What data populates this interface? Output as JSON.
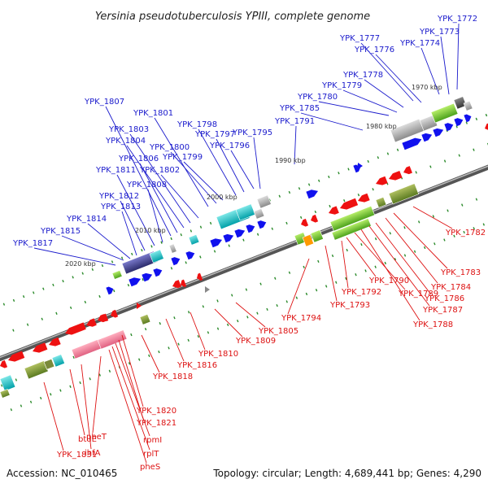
{
  "title": "Yersinia pseudotuberculosis YPIII, complete genome",
  "footer": {
    "accession": "Accession: NC_010465",
    "summary": "Topology: circular; Length: 4,689,441 bp; Genes: 4,290"
  },
  "colors": {
    "forward_label": "#1a1acc",
    "reverse_label": "#dd1111",
    "forward_gene": "#1111ee",
    "reverse_gene": "#ee1111",
    "backbone": "#777777",
    "tick": "#2a8a2a"
  },
  "kbp_ticks": [
    "1970 kbp",
    "1980 kbp",
    "1990 kbp",
    "2000 kbp",
    "2010 kbp",
    "2020 kbp"
  ],
  "forward_labels": [
    "YPK_1772",
    "YPK_1773",
    "YPK_1774",
    "YPK_1777",
    "YPK_1776",
    "YPK_1778",
    "YPK_1779",
    "YPK_1780",
    "YPK_1785",
    "YPK_1791",
    "YPK_1795",
    "YPK_1796",
    "YPK_1797",
    "YPK_1798",
    "YPK_1799",
    "YPK_1800",
    "YPK_1801",
    "YPK_1802",
    "YPK_1803",
    "YPK_1804",
    "YPK_1806",
    "YPK_1807",
    "YPK_1808",
    "YPK_1811",
    "YPK_1812",
    "YPK_1813",
    "YPK_1814",
    "YPK_1815",
    "YPK_1817"
  ],
  "reverse_labels": [
    "YPK_1782",
    "YPK_1783",
    "YPK_1784",
    "YPK_1786",
    "YPK_1787",
    "YPK_1788",
    "YPK_1789",
    "YPK_1790",
    "YPK_1792",
    "YPK_1793",
    "YPK_1794",
    "YPK_1805",
    "YPK_1809",
    "YPK_1810",
    "YPK_1816",
    "YPK_1818",
    "YPK_1820",
    "YPK_1821",
    "rpmI",
    "rplT",
    "pheS",
    "pheT",
    "ihfA",
    "btuE",
    "YPK_1831"
  ]
}
